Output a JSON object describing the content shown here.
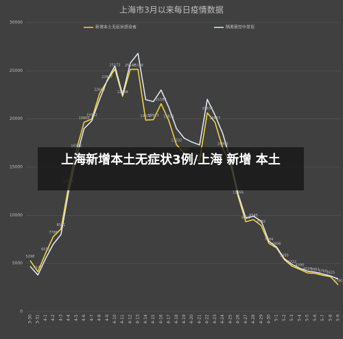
{
  "chart_data": {
    "type": "line",
    "title": "上海市3月以来每日疫情数据",
    "categories": [
      "3-30",
      "3-31",
      "4-1",
      "4-2",
      "4-3",
      "4-4",
      "4-5",
      "4-6",
      "4-7",
      "4-8",
      "4-9",
      "4-10",
      "4-11",
      "4-12",
      "4-13",
      "4-14",
      "4-15",
      "4-16",
      "4-17",
      "4-18",
      "4-19",
      "4-20",
      "4-21",
      "4-22",
      "4-23",
      "4-24",
      "4-25",
      "4-26",
      "4-27",
      "4-28",
      "4-29",
      "4-30",
      "5-1",
      "5-2",
      "5-3",
      "5-4",
      "5-5",
      "5-6",
      "5-7",
      "5-8",
      "5-9"
    ],
    "series": [
      {
        "name": "新增本土无症状感染者",
        "color": "#f2d33a",
        "values": [
          5298,
          4144,
          6051,
          7788,
          8581,
          13086,
          16766,
          19660,
          19982,
          22609,
          23937,
          25173,
          22348,
          25141,
          25146,
          19872,
          19923,
          21582,
          19831,
          17332,
          16407,
          15861,
          15698,
          20634,
          19657,
          16983,
          15319,
          11956,
          9330,
          9545,
          8932,
          7084,
          6606,
          5395,
          4722,
          4390,
          4024,
          3961,
          3760,
          3625,
          2780
        ]
      },
      {
        "name": "隔离管控中发现",
        "color": "#dfe6f2",
        "values": [
          4700,
          3800,
          5500,
          7000,
          8000,
          12500,
          16000,
          19000,
          19800,
          22000,
          24000,
          25500,
          22500,
          25800,
          26800,
          22000,
          21800,
          23000,
          21200,
          19000,
          18000,
          17600,
          17300,
          22032,
          20400,
          18500,
          15795,
          12200,
          9700,
          9900,
          9400,
          7300,
          6700,
          5500,
          4900,
          4500,
          4200,
          4100,
          3900,
          3700,
          3400
        ]
      }
    ],
    "ylim": [
      0,
      30000
    ],
    "yticks": [
      0,
      5000,
      10000,
      15000,
      20000,
      25000,
      30000
    ],
    "grid": true,
    "overlay_caption": "上海新增本土无症状3例/上海 新增 本土"
  }
}
